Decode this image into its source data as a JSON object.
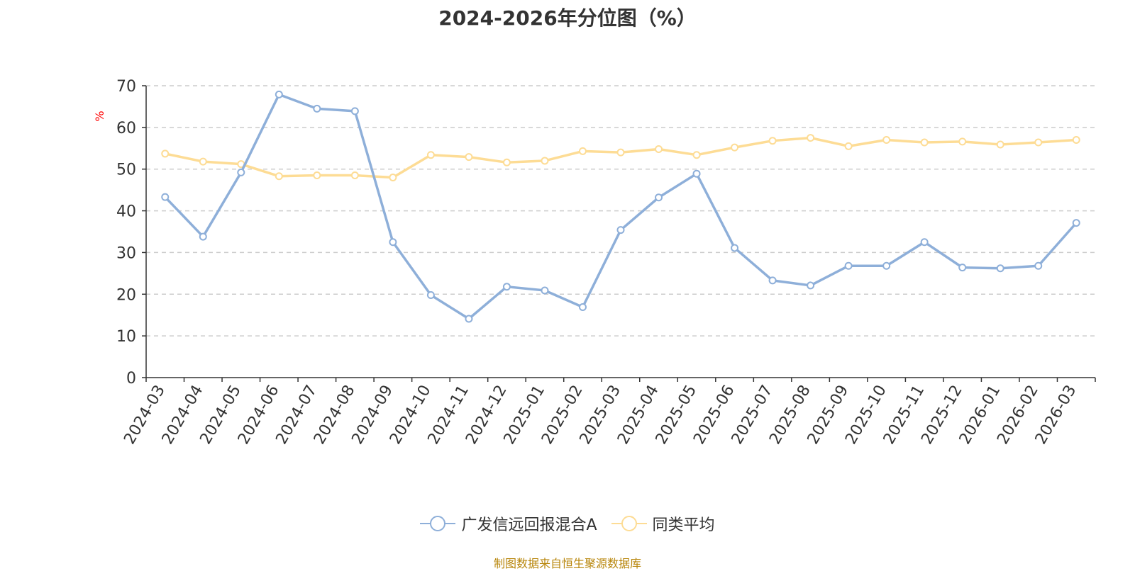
{
  "chart_data": {
    "type": "line",
    "title": "2024-2026年分位图（%）",
    "ylabel": "%",
    "xlabel": "",
    "ylim": [
      0,
      70
    ],
    "yticks": [
      0,
      10,
      20,
      30,
      40,
      50,
      60,
      70
    ],
    "grid": true,
    "legend_position": "bottom",
    "categories": [
      "2024-03",
      "2024-04",
      "2024-05",
      "2024-06",
      "2024-07",
      "2024-08",
      "2024-09",
      "2024-10",
      "2024-11",
      "2024-12",
      "2025-01",
      "2025-02",
      "2025-03",
      "2025-04",
      "2025-05",
      "2025-06",
      "2025-07",
      "2025-08",
      "2025-09",
      "2025-10",
      "2025-11",
      "2025-12",
      "2026-01",
      "2026-02",
      "2026-03"
    ],
    "series": [
      {
        "name": "广发信远回报混合A",
        "color": "#8eafd9",
        "values": [
          43.3,
          33.8,
          49.2,
          67.9,
          64.5,
          63.9,
          32.5,
          19.8,
          14.1,
          21.8,
          20.9,
          16.9,
          35.4,
          43.2,
          48.9,
          31.1,
          23.3,
          22.1,
          26.8,
          26.8,
          32.5,
          26.4,
          26.2,
          26.8,
          37.1
        ]
      },
      {
        "name": "同类平均",
        "color": "#fddc95",
        "values": [
          53.7,
          51.8,
          51.2,
          48.3,
          48.5,
          48.5,
          48.0,
          53.4,
          52.9,
          51.6,
          52.0,
          54.3,
          54.0,
          54.8,
          53.4,
          55.2,
          56.8,
          57.5,
          55.5,
          57.0,
          56.4,
          56.6,
          55.9,
          56.4,
          57.0
        ]
      }
    ]
  },
  "source_note": "制图数据来自恒生聚源数据库",
  "colors": {
    "axis": "#333333",
    "grid": "#cccccc",
    "ylabel": "#ff0000",
    "source": "#b8860b"
  }
}
